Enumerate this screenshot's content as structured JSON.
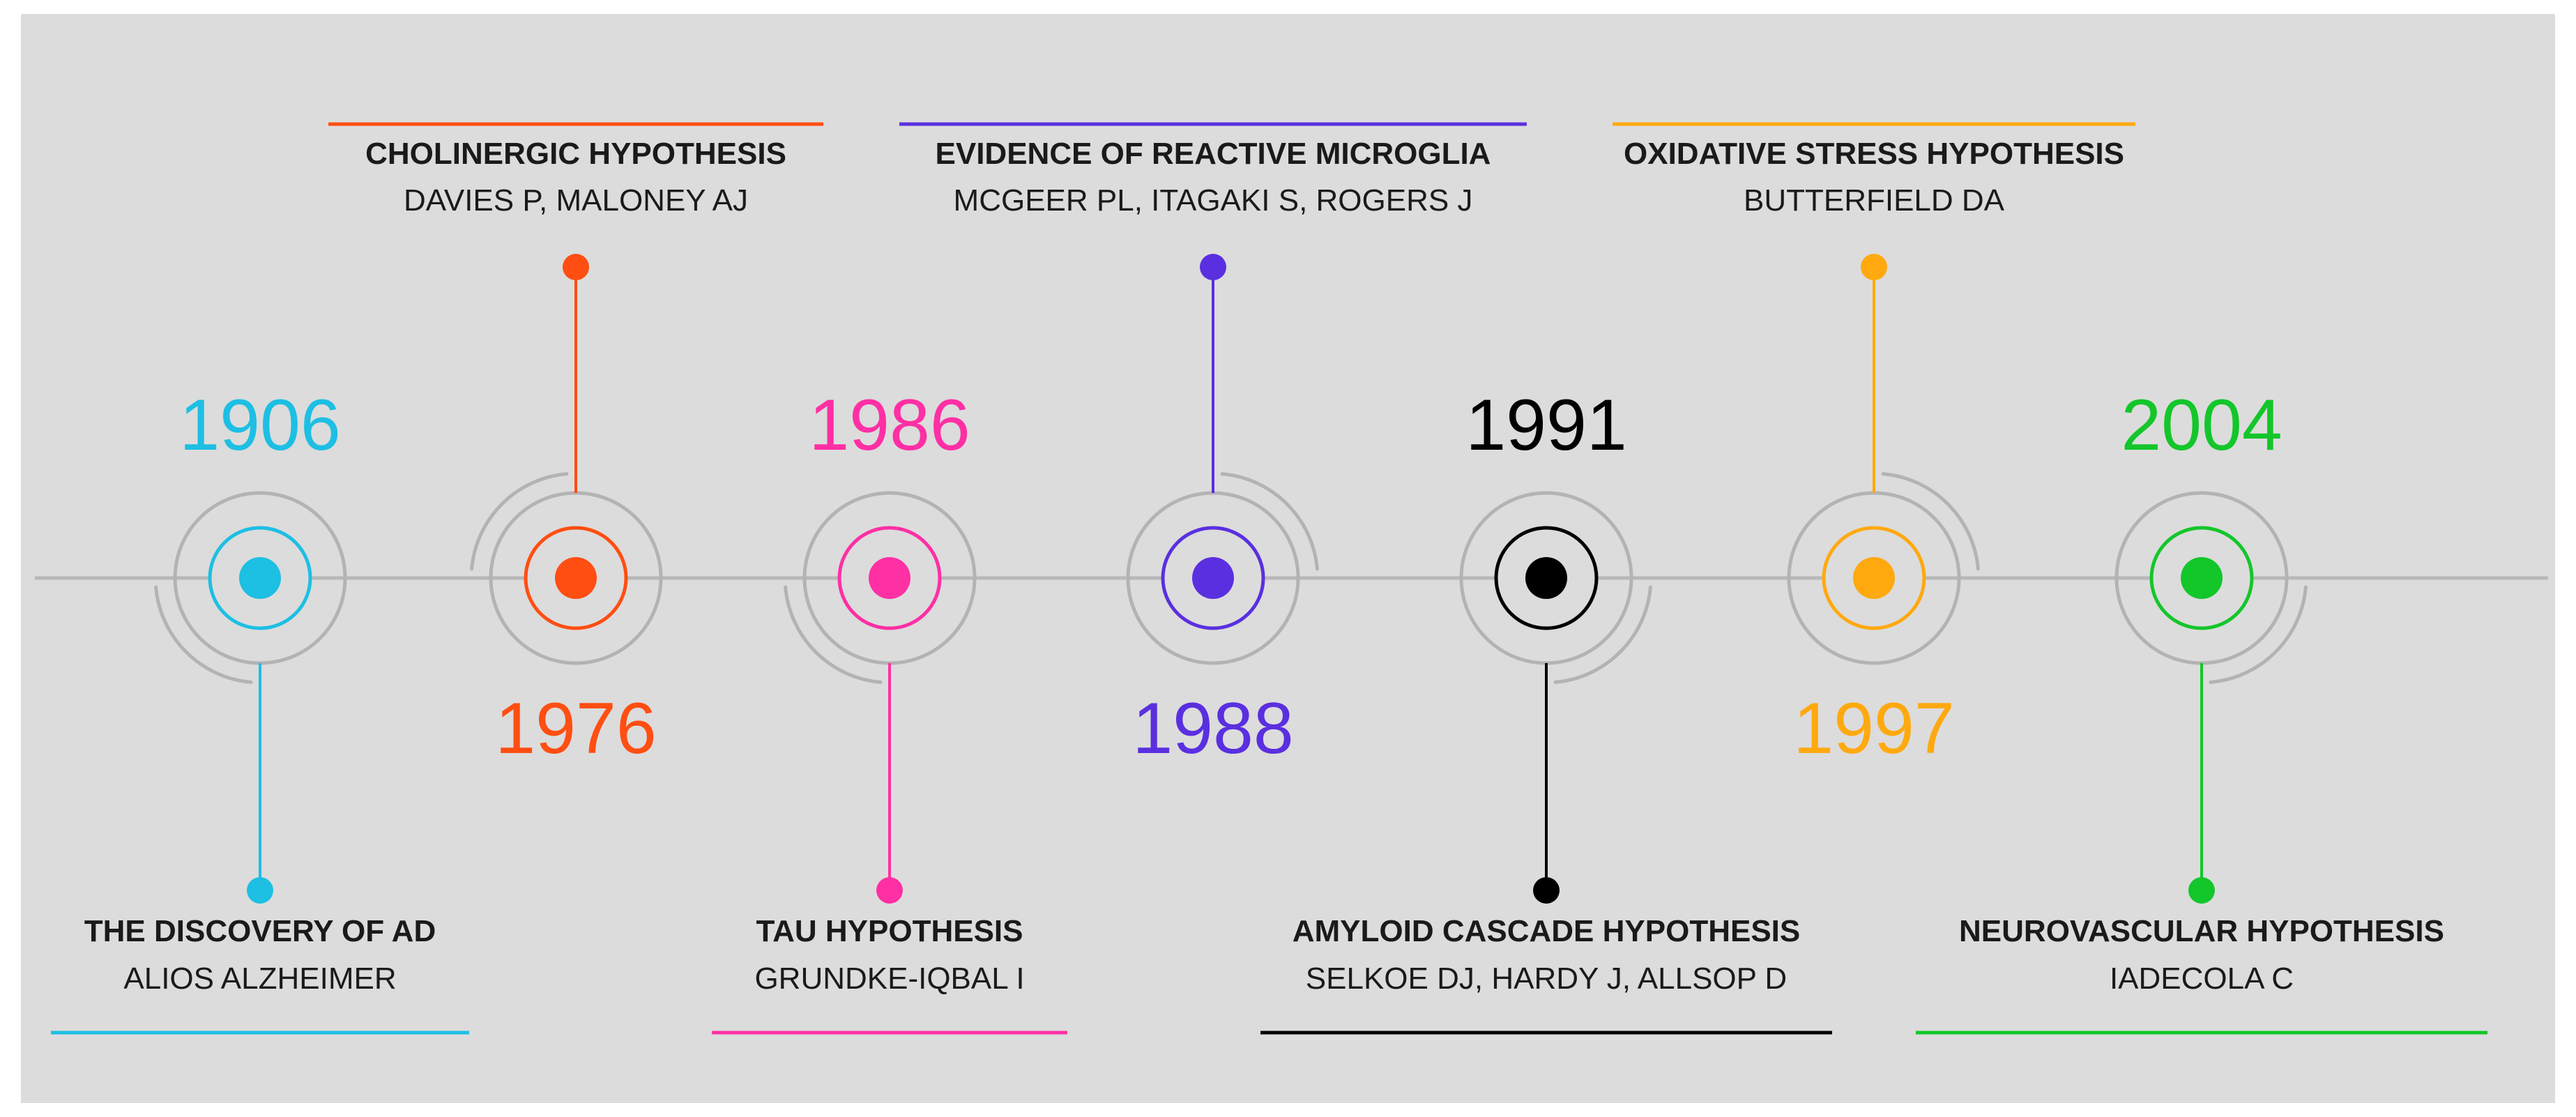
{
  "events": [
    {
      "year": "1906",
      "title": "THE DISCOVERY OF AD",
      "authors": "ALIOS ALZHEIMER",
      "color": "#1DBFE3",
      "side": "bottom"
    },
    {
      "year": "1976",
      "title": "CHOLINERGIC HYPOTHESIS",
      "authors": "DAVIES P, MALONEY AJ",
      "color": "#FF4E12",
      "side": "top"
    },
    {
      "year": "1986",
      "title": "TAU HYPOTHESIS",
      "authors": "GRUNDKE-IQBAL I",
      "color": "#FF2FA4",
      "side": "bottom"
    },
    {
      "year": "1988",
      "title": "EVIDENCE OF REACTIVE MICROGLIA",
      "authors": "MCGEER PL, ITAGAKI S, ROGERS J",
      "color": "#5A2FE0",
      "side": "top"
    },
    {
      "year": "1991",
      "title": "AMYLOID CASCADE HYPOTHESIS",
      "authors": "SELKOE DJ, HARDY J, ALLSOP D",
      "color": "#000000",
      "side": "bottom"
    },
    {
      "year": "1997",
      "title": "OXIDATIVE STRESS HYPOTHESIS",
      "authors": "BUTTERFIELD DA",
      "color": "#FFA90F",
      "side": "top"
    },
    {
      "year": "2004",
      "title": "NEUROVASCULAR HYPOTHESIS",
      "authors": "IADECOLA C",
      "color": "#13C62A",
      "side": "bottom"
    }
  ],
  "colors": {
    "panel": "#DCDCDC",
    "axis": "#B8B8B8",
    "ring": "#B3B3B3",
    "text": "#1A1A1A"
  }
}
